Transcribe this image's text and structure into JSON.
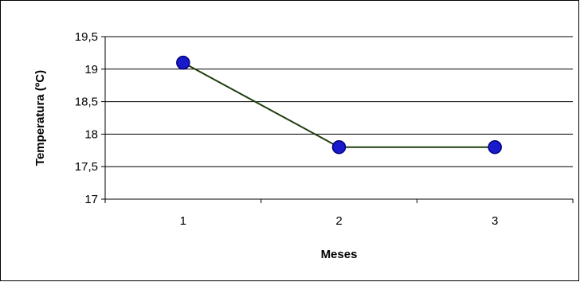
{
  "chart_data": {
    "type": "line",
    "title": "",
    "xlabel": "Meses",
    "ylabel": "Temperatura (ºC)",
    "categories": [
      "1",
      "2",
      "3"
    ],
    "series": [
      {
        "values": [
          19.1,
          17.8,
          17.8
        ]
      }
    ],
    "ylim": [
      17,
      19.5
    ],
    "yticks": [
      17,
      17.5,
      18,
      18.5,
      19,
      19.5
    ],
    "ytick_labels": [
      "17",
      "17,5",
      "18",
      "18,5",
      "19",
      "19,5"
    ],
    "grid": true,
    "colors": {
      "line": "#1f3d0c",
      "marker_fill": "#1a1acc",
      "marker_edge": "#000080",
      "grid": "#000000"
    }
  }
}
